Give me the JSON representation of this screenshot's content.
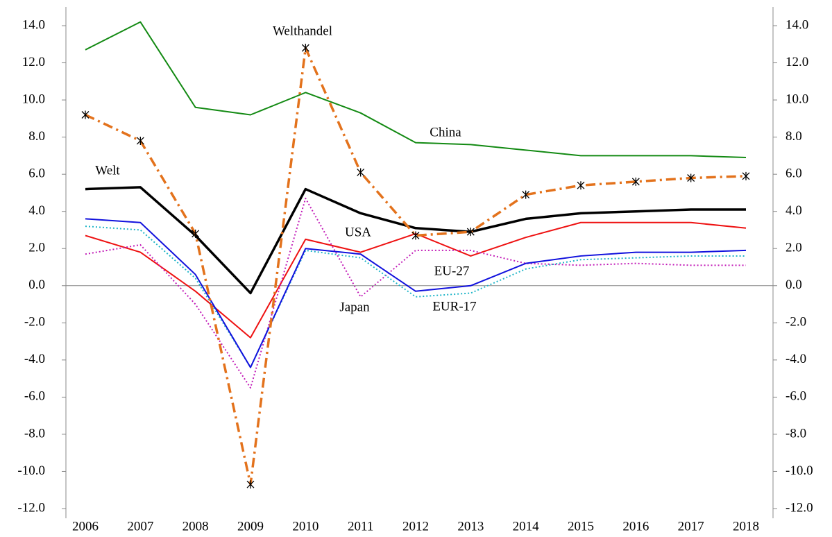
{
  "chart_data": {
    "type": "line",
    "categories": [
      "2006",
      "2007",
      "2008",
      "2009",
      "2010",
      "2011",
      "2012",
      "2013",
      "2014",
      "2015",
      "2016",
      "2017",
      "2018"
    ],
    "series": [
      {
        "name": "Welt",
        "color": "#000000",
        "style": "solid",
        "values": [
          5.2,
          5.3,
          2.7,
          -0.4,
          5.2,
          3.9,
          3.1,
          2.9,
          3.6,
          3.9,
          4.0,
          4.1,
          4.1
        ]
      },
      {
        "name": "China",
        "color": "#138a13",
        "style": "solid",
        "values": [
          12.7,
          14.2,
          9.6,
          9.2,
          10.4,
          9.3,
          7.7,
          7.6,
          7.3,
          7.0,
          7.0,
          7.0,
          6.9
        ]
      },
      {
        "name": "Welthandel",
        "color": "#e3721c",
        "style": "dashdot",
        "marker": "asterisk",
        "values": [
          9.2,
          7.8,
          2.8,
          -10.7,
          12.8,
          6.1,
          2.7,
          2.9,
          4.9,
          5.4,
          5.6,
          5.8,
          5.9
        ]
      },
      {
        "name": "USA",
        "color": "#ee1111",
        "style": "solid",
        "values": [
          2.7,
          1.8,
          -0.3,
          -2.8,
          2.5,
          1.8,
          2.8,
          1.6,
          2.6,
          3.4,
          3.4,
          3.4,
          3.1
        ]
      },
      {
        "name": "EU-27",
        "color": "#1111dd",
        "style": "solid",
        "values": [
          3.6,
          3.4,
          0.6,
          -4.4,
          2.0,
          1.7,
          -0.3,
          0.0,
          1.2,
          1.6,
          1.8,
          1.8,
          1.9
        ]
      },
      {
        "name": "EUR-17",
        "color": "#1fb5c8",
        "style": "dotted",
        "values": [
          3.2,
          3.0,
          0.4,
          -4.4,
          1.9,
          1.5,
          -0.6,
          -0.4,
          0.9,
          1.4,
          1.5,
          1.6,
          1.6
        ]
      },
      {
        "name": "Japan",
        "color": "#c21cb8",
        "style": "dotted",
        "values": [
          1.7,
          2.2,
          -1.0,
          -5.5,
          4.7,
          -0.6,
          1.9,
          1.9,
          1.2,
          1.1,
          1.2,
          1.1,
          1.1
        ]
      }
    ],
    "ylim": [
      -12,
      14
    ],
    "yticks": [
      {
        "value": -12,
        "label": "-12.0"
      },
      {
        "value": -10,
        "label": "-10.0"
      },
      {
        "value": -8,
        "label": "-8.0"
      },
      {
        "value": -6,
        "label": "-6.0"
      },
      {
        "value": -4,
        "label": "-4.0"
      },
      {
        "value": -2,
        "label": "-2.0"
      },
      {
        "value": 0,
        "label": "0.0"
      },
      {
        "value": 2,
        "label": "2.0"
      },
      {
        "value": 4,
        "label": "4.0"
      },
      {
        "value": 6,
        "label": "6.0"
      },
      {
        "value": 8,
        "label": "8.0"
      },
      {
        "value": 10,
        "label": "10.0"
      },
      {
        "value": 12,
        "label": "12.0"
      },
      {
        "value": 14,
        "label": "14.0"
      }
    ],
    "y2lim": [
      -12,
      14
    ],
    "y2ticks": [
      {
        "value": -12,
        "label": "-12.0"
      },
      {
        "value": -10,
        "label": "-10.0"
      },
      {
        "value": -8,
        "label": "-8.0"
      },
      {
        "value": -6,
        "label": "-6.0"
      },
      {
        "value": -4,
        "label": "-4.0"
      },
      {
        "value": -2,
        "label": "-2.0"
      },
      {
        "value": 0,
        "label": "0.0"
      },
      {
        "value": 2,
        "label": "2.0"
      },
      {
        "value": 4,
        "label": "4.0"
      },
      {
        "value": 6,
        "label": "6.0"
      },
      {
        "value": 8,
        "label": "8.0"
      },
      {
        "value": 10,
        "label": "10.0"
      },
      {
        "value": 12,
        "label": "12.0"
      },
      {
        "value": 14,
        "label": "14.0"
      }
    ],
    "grid": false
  }
}
